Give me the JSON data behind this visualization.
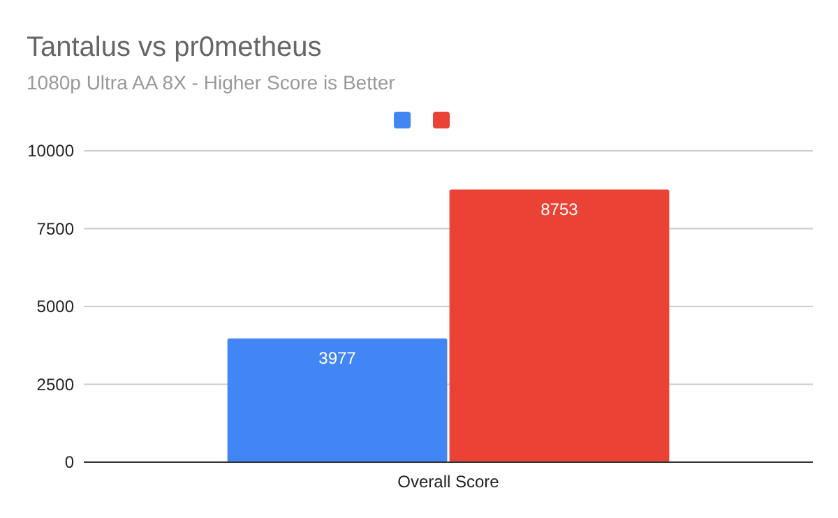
{
  "chart_data": {
    "type": "bar",
    "title": "Tantalus vs pr0metheus",
    "subtitle": "1080p Ultra AA 8X - Higher Score is Better",
    "categories": [
      "Overall Score"
    ],
    "series": [
      {
        "color": "#4285f4",
        "values": [
          3977
        ]
      },
      {
        "color": "#ea4335",
        "values": [
          8753
        ]
      }
    ],
    "ylim": [
      0,
      10000
    ],
    "yticks": [
      0,
      2500,
      5000,
      7500,
      10000
    ],
    "grid": "y",
    "data_labels": true
  }
}
